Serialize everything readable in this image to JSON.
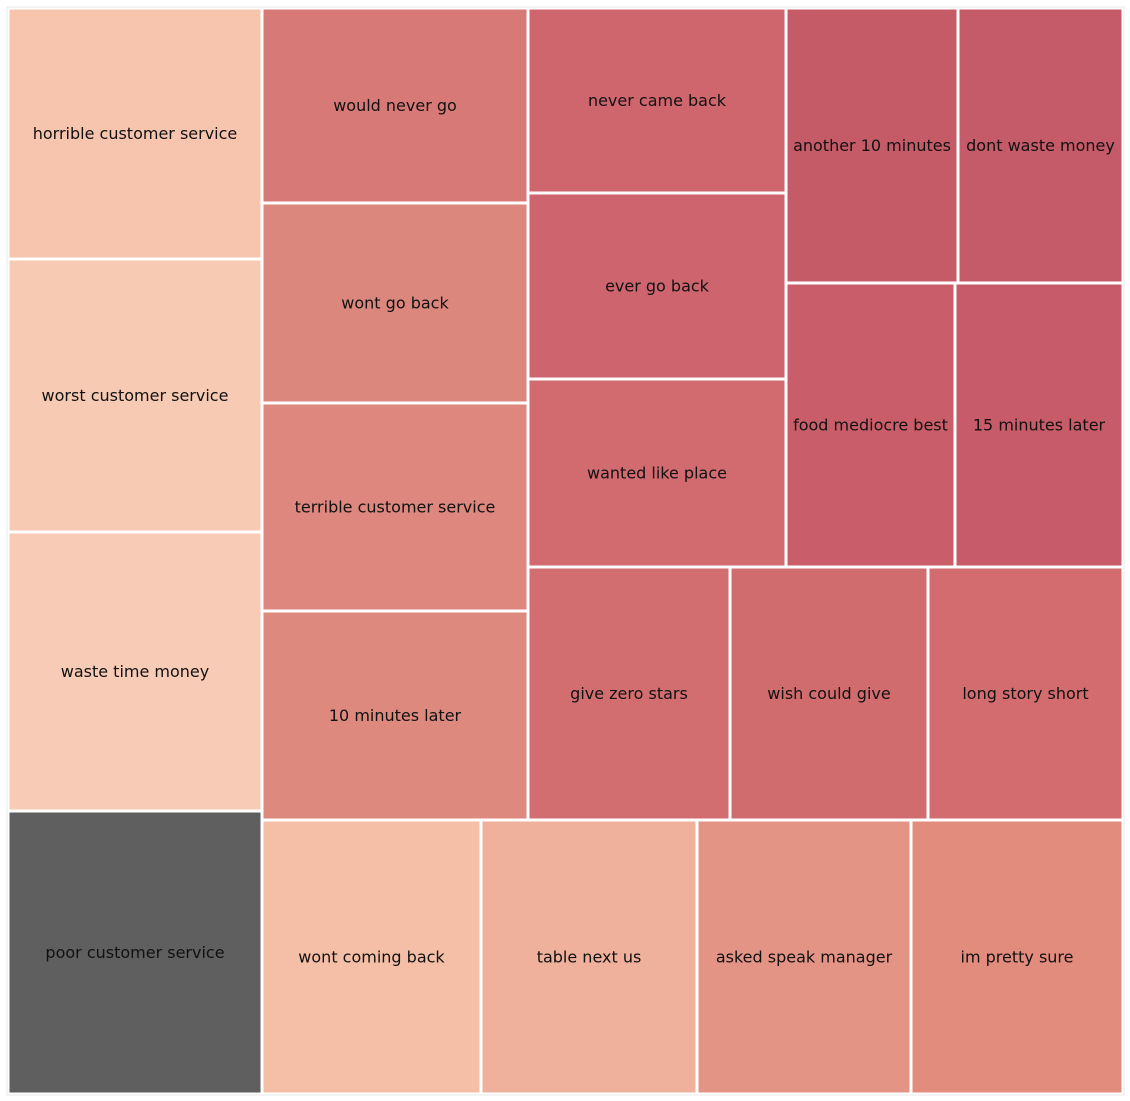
{
  "chart_data": {
    "type": "treemap",
    "title": "",
    "items": [
      {
        "label": "horrible customer service",
        "color": "#f7c5ae"
      },
      {
        "label": "worst customer service",
        "color": "#f7cab4"
      },
      {
        "label": "waste time money",
        "color": "#f7cbb6"
      },
      {
        "label": "poor customer service",
        "color": "#5f5f5f"
      },
      {
        "label": "would never go",
        "color": "#d77a77"
      },
      {
        "label": "wont go back",
        "color": "#dc877d"
      },
      {
        "label": "terrible customer service",
        "color": "#de877e"
      },
      {
        "label": "10 minutes later",
        "color": "#de897e"
      },
      {
        "label": "never came back",
        "color": "#cf666e"
      },
      {
        "label": "ever go back",
        "color": "#cd646e"
      },
      {
        "label": "wanted like place",
        "color": "#d16b6f"
      },
      {
        "label": "another 10 minutes",
        "color": "#c65b68"
      },
      {
        "label": "dont waste money",
        "color": "#c55a68"
      },
      {
        "label": "food mediocre best",
        "color": "#c95d69"
      },
      {
        "label": "15 minutes later",
        "color": "#c75b69"
      },
      {
        "label": "give zero stars",
        "color": "#d36e70"
      },
      {
        "label": "wish could give",
        "color": "#d16c6e"
      },
      {
        "label": "long story short",
        "color": "#d26c6f"
      },
      {
        "label": "wont coming back",
        "color": "#f5bfa7"
      },
      {
        "label": "table next us",
        "color": "#efb19b"
      },
      {
        "label": "asked speak manager",
        "color": "#e49485"
      },
      {
        "label": "im pretty sure",
        "color": "#e28c7e"
      }
    ]
  }
}
